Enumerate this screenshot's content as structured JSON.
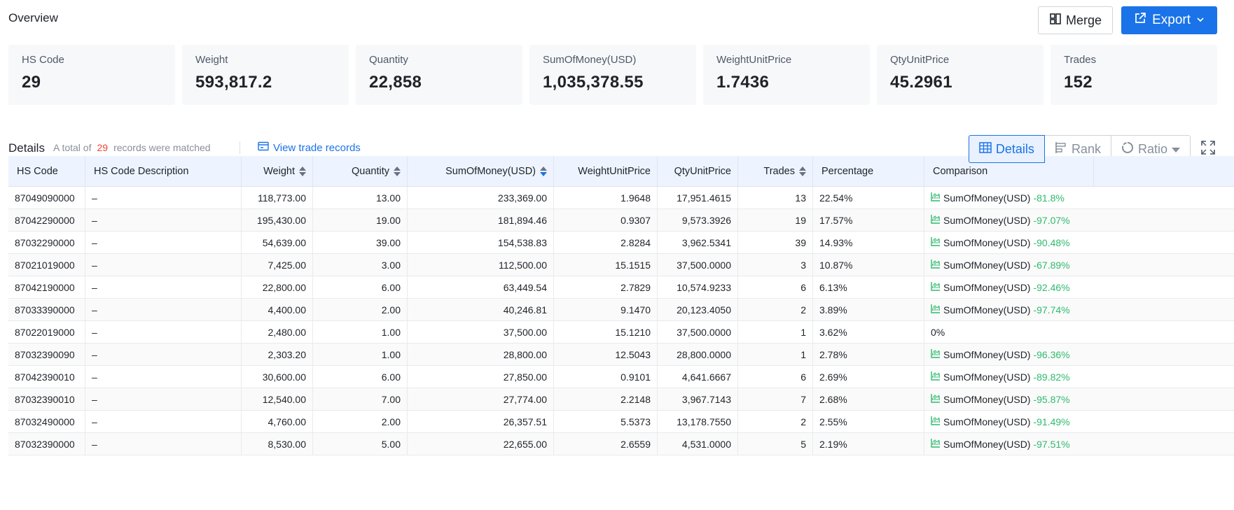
{
  "header": {
    "title": "Overview",
    "merge_label": "Merge",
    "export_label": "Export"
  },
  "cards": [
    {
      "label": "HS Code",
      "value": "29"
    },
    {
      "label": "Weight",
      "value": "593,817.2"
    },
    {
      "label": "Quantity",
      "value": "22,858"
    },
    {
      "label": "SumOfMoney(USD)",
      "value": "1,035,378.55"
    },
    {
      "label": "WeightUnitPrice",
      "value": "1.7436"
    },
    {
      "label": "QtyUnitPrice",
      "value": "45.2961"
    },
    {
      "label": "Trades",
      "value": "152"
    }
  ],
  "details": {
    "title": "Details",
    "prefix": "A total of",
    "count": "29",
    "suffix": "records were matched",
    "view_records": "View trade records",
    "tabs": [
      "Details",
      "Rank",
      "Ratio"
    ],
    "active_tab": "Details"
  },
  "table": {
    "columns": [
      "HS Code",
      "HS Code Description",
      "Weight",
      "Quantity",
      "SumOfMoney(USD)",
      "WeightUnitPrice",
      "QtyUnitPrice",
      "Trades",
      "Percentage",
      "Comparison"
    ],
    "sorted_column": "SumOfMoney(USD)",
    "sort_direction": "descending",
    "rows": [
      [
        "87049090000",
        "–",
        "118,773.00",
        "13.00",
        "233,369.00",
        "1.9648",
        "17,951.4615",
        "13",
        "22.54%",
        "SumOfMoney(USD)",
        "-81.8%"
      ],
      [
        "87042290000",
        "–",
        "195,430.00",
        "19.00",
        "181,894.46",
        "0.9307",
        "9,573.3926",
        "19",
        "17.57%",
        "SumOfMoney(USD)",
        "-97.07%"
      ],
      [
        "87032290000",
        "–",
        "54,639.00",
        "39.00",
        "154,538.83",
        "2.8284",
        "3,962.5341",
        "39",
        "14.93%",
        "SumOfMoney(USD)",
        "-90.48%"
      ],
      [
        "87021019000",
        "–",
        "7,425.00",
        "3.00",
        "112,500.00",
        "15.1515",
        "37,500.0000",
        "3",
        "10.87%",
        "SumOfMoney(USD)",
        "-67.89%"
      ],
      [
        "87042190000",
        "–",
        "22,800.00",
        "6.00",
        "63,449.54",
        "2.7829",
        "10,574.9233",
        "6",
        "6.13%",
        "SumOfMoney(USD)",
        "-92.46%"
      ],
      [
        "87033390000",
        "–",
        "4,400.00",
        "2.00",
        "40,246.81",
        "9.1470",
        "20,123.4050",
        "2",
        "3.89%",
        "SumOfMoney(USD)",
        "-97.74%"
      ],
      [
        "87022019000",
        "–",
        "2,480.00",
        "1.00",
        "37,500.00",
        "15.1210",
        "37,500.0000",
        "1",
        "3.62%",
        "",
        "0%"
      ],
      [
        "87032390090",
        "–",
        "2,303.20",
        "1.00",
        "28,800.00",
        "12.5043",
        "28,800.0000",
        "1",
        "2.78%",
        "SumOfMoney(USD)",
        "-96.36%"
      ],
      [
        "87042390010",
        "–",
        "30,600.00",
        "6.00",
        "27,850.00",
        "0.9101",
        "4,641.6667",
        "6",
        "2.69%",
        "SumOfMoney(USD)",
        "-89.82%"
      ],
      [
        "87032390010",
        "–",
        "12,540.00",
        "7.00",
        "27,774.00",
        "2.2148",
        "3,967.7143",
        "7",
        "2.68%",
        "SumOfMoney(USD)",
        "-95.87%"
      ],
      [
        "87032490000",
        "–",
        "4,760.00",
        "2.00",
        "26,357.51",
        "5.5373",
        "13,178.7550",
        "2",
        "2.55%",
        "SumOfMoney(USD)",
        "-91.49%"
      ],
      [
        "87032390000",
        "–",
        "8,530.00",
        "5.00",
        "22,655.00",
        "2.6559",
        "4,531.0000",
        "5",
        "2.19%",
        "SumOfMoney(USD)",
        "-97.51%"
      ]
    ]
  },
  "colors": {
    "accent": "#1a73e8",
    "positive": "#2fba6e",
    "count": "#f04438",
    "header_bg": "#edf4ff"
  }
}
